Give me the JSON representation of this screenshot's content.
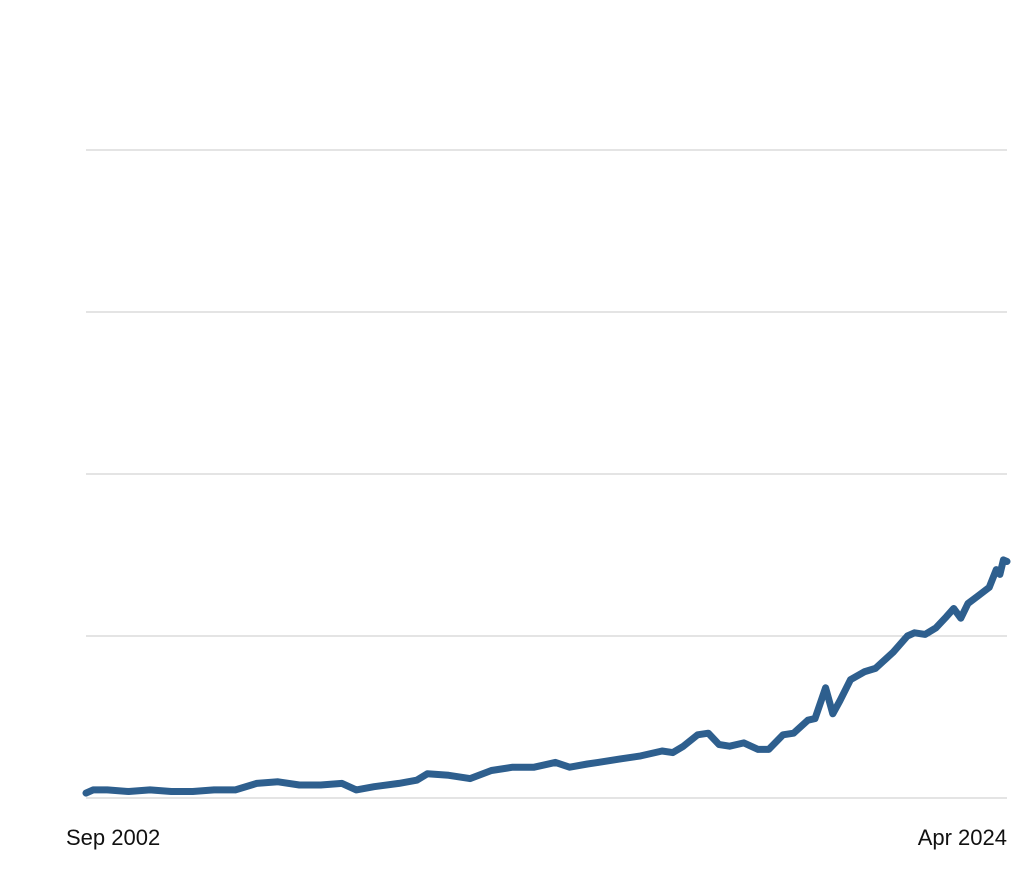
{
  "chart_data": {
    "type": "line",
    "title": "",
    "xlabel": "",
    "ylabel": "",
    "grid": true,
    "legend": "none",
    "y_tick_labels_shown": false,
    "x_tick_labels": [
      "Sep 2002",
      "Apr 2024"
    ],
    "x_range": [
      "2002-09",
      "2024-04"
    ],
    "ylim": [
      0,
      4
    ],
    "yticks": [
      0,
      1,
      2,
      3,
      4
    ],
    "series": [
      {
        "color": "#2e5f8e",
        "points": [
          [
            "2002-09",
            0.03
          ],
          [
            "2002-11",
            0.05
          ],
          [
            "2003-03",
            0.05
          ],
          [
            "2003-09",
            0.04
          ],
          [
            "2004-03",
            0.05
          ],
          [
            "2004-09",
            0.04
          ],
          [
            "2005-03",
            0.04
          ],
          [
            "2005-09",
            0.05
          ],
          [
            "2006-03",
            0.05
          ],
          [
            "2006-09",
            0.09
          ],
          [
            "2007-03",
            0.1
          ],
          [
            "2007-09",
            0.08
          ],
          [
            "2008-03",
            0.08
          ],
          [
            "2008-09",
            0.09
          ],
          [
            "2009-01",
            0.05
          ],
          [
            "2009-06",
            0.07
          ],
          [
            "2010-01",
            0.09
          ],
          [
            "2010-06",
            0.11
          ],
          [
            "2010-09",
            0.15
          ],
          [
            "2011-03",
            0.14
          ],
          [
            "2011-09",
            0.12
          ],
          [
            "2012-03",
            0.17
          ],
          [
            "2012-09",
            0.19
          ],
          [
            "2013-03",
            0.19
          ],
          [
            "2013-09",
            0.22
          ],
          [
            "2014-01",
            0.19
          ],
          [
            "2014-06",
            0.21
          ],
          [
            "2014-09",
            0.22
          ],
          [
            "2015-03",
            0.24
          ],
          [
            "2015-09",
            0.26
          ],
          [
            "2016-03",
            0.29
          ],
          [
            "2016-06",
            0.28
          ],
          [
            "2016-09",
            0.32
          ],
          [
            "2017-01",
            0.39
          ],
          [
            "2017-04",
            0.4
          ],
          [
            "2017-07",
            0.33
          ],
          [
            "2017-10",
            0.32
          ],
          [
            "2018-02",
            0.34
          ],
          [
            "2018-06",
            0.3
          ],
          [
            "2018-09",
            0.3
          ],
          [
            "2019-01",
            0.39
          ],
          [
            "2019-04",
            0.4
          ],
          [
            "2019-08",
            0.48
          ],
          [
            "2019-10",
            0.49
          ],
          [
            "2020-01",
            0.68
          ],
          [
            "2020-03",
            0.52
          ],
          [
            "2020-05",
            0.6
          ],
          [
            "2020-08",
            0.73
          ],
          [
            "2020-12",
            0.78
          ],
          [
            "2021-03",
            0.8
          ],
          [
            "2021-05",
            0.84
          ],
          [
            "2021-08",
            0.9
          ],
          [
            "2021-12",
            1.0
          ],
          [
            "2022-02",
            1.02
          ],
          [
            "2022-05",
            1.01
          ],
          [
            "2022-08",
            1.05
          ],
          [
            "2022-11",
            1.12
          ],
          [
            "2023-01",
            1.17
          ],
          [
            "2023-03",
            1.11
          ],
          [
            "2023-05",
            1.2
          ],
          [
            "2023-08",
            1.25
          ],
          [
            "2023-11",
            1.3
          ],
          [
            "2024-01",
            1.41
          ],
          [
            "2024-02",
            1.38
          ],
          [
            "2024-03",
            1.47
          ],
          [
            "2024-04",
            1.46
          ]
        ]
      }
    ]
  }
}
